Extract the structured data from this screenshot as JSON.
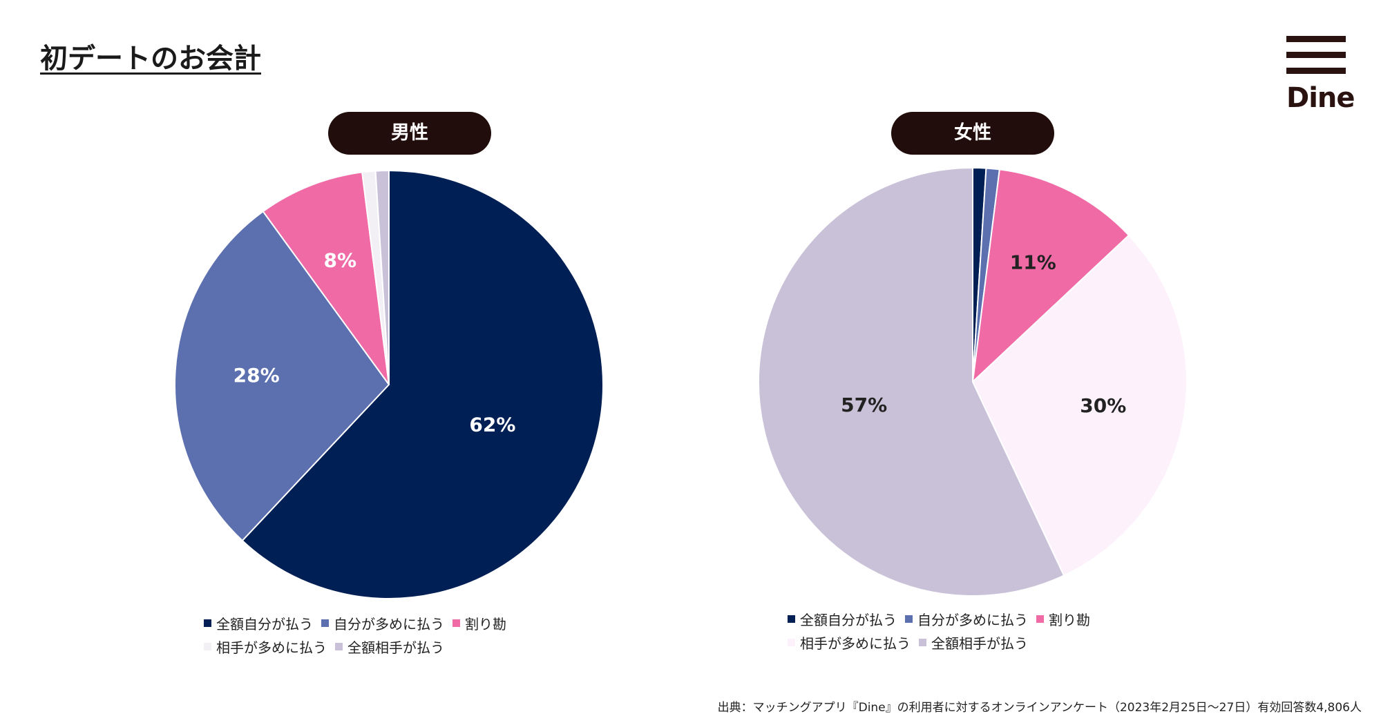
{
  "title": "初デートのお会計",
  "logo": {
    "text": "Dine"
  },
  "source": "出典：マッチングアプリ『Dine』の利用者に対するオンラインアンケート（2023年2月25日〜27日）有効回答数4,806人",
  "categories": [
    "全額自分が払う",
    "自分が多めに払う",
    "割り勘",
    "相手が多めに払う",
    "全額相手が払う"
  ],
  "colors": [
    "#001f54",
    "#5c70b0",
    "#f06aa6",
    "#fdf2fc",
    "#c9c1d8"
  ],
  "chart_data": [
    {
      "type": "pie",
      "title": "男性",
      "categories": [
        "全額自分が払う",
        "自分が多めに払う",
        "割り勘",
        "相手が多めに払う",
        "全額相手が払う"
      ],
      "values": [
        62,
        28,
        8,
        1,
        1
      ],
      "labels": [
        "62%",
        "28%",
        "8%",
        "",
        ""
      ],
      "label_colors": [
        "#ffffff",
        "#ffffff",
        "#ffffff",
        "#222222",
        "#222222"
      ],
      "slice_colors": [
        "#001f54",
        "#5c70b0",
        "#f06aa6",
        "#f2f0f5",
        "#c9c1d8"
      ],
      "legend": "bottom"
    },
    {
      "type": "pie",
      "title": "女性",
      "categories": [
        "全額自分が払う",
        "自分が多めに払う",
        "割り勘",
        "相手が多めに払う",
        "全額相手が払う"
      ],
      "values": [
        1,
        1,
        11,
        30,
        57
      ],
      "labels": [
        "",
        "",
        "11%",
        "30%",
        "57%"
      ],
      "label_colors": [
        "#ffffff",
        "#ffffff",
        "#222222",
        "#222222",
        "#222222"
      ],
      "slice_colors": [
        "#001f54",
        "#5c70b0",
        "#f06aa6",
        "#fdf2fc",
        "#c9c1d8"
      ],
      "legend": "bottom"
    }
  ]
}
